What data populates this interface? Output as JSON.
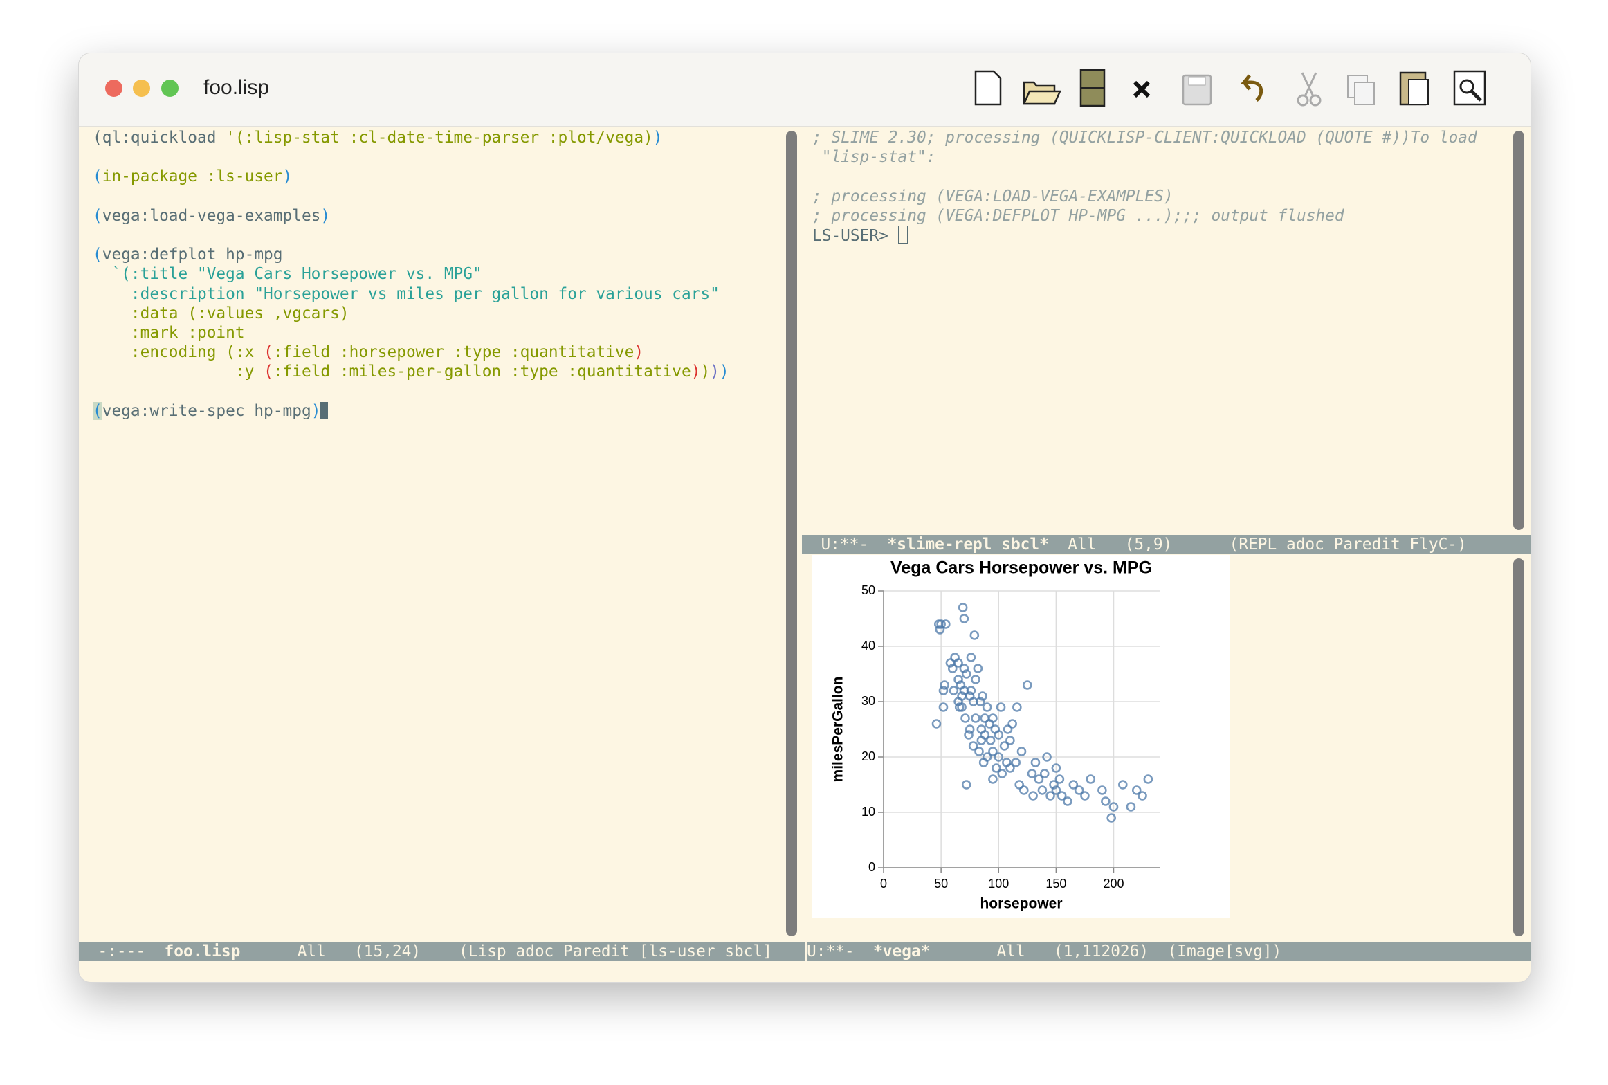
{
  "window": {
    "title": "foo.lisp"
  },
  "editor": {
    "lines": [
      [
        {
          "text": "(ql:quickload ",
          "color": "#586e75"
        },
        {
          "text": "'(:lisp-stat :cl-date-time-parser :plot/vega)",
          "color": "#859900"
        },
        {
          "text": ")",
          "color": "#268bd2"
        }
      ],
      [],
      [
        {
          "text": "(",
          "color": "#268bd2"
        },
        {
          "text": "in-package :ls-user",
          "color": "#859900"
        },
        {
          "text": ")",
          "color": "#268bd2"
        }
      ],
      [],
      [
        {
          "text": "(",
          "color": "#268bd2"
        },
        {
          "text": "vega:load-vega-examples",
          "color": "#586e75"
        },
        {
          "text": ")",
          "color": "#268bd2"
        }
      ],
      [],
      [
        {
          "text": "(",
          "color": "#268bd2"
        },
        {
          "text": "vega:defplot hp-mpg",
          "color": "#586e75"
        }
      ],
      [
        {
          "text": "  `(:title \"Vega Cars Horsepower vs. MPG\"",
          "color": "#2aa198"
        }
      ],
      [
        {
          "text": "    :description \"Horsepower vs miles per gallon for various cars\"",
          "color": "#2aa198"
        }
      ],
      [
        {
          "text": "    :data (:values ,vgcars)",
          "color": "#859900"
        }
      ],
      [
        {
          "text": "    :mark :point",
          "color": "#859900"
        }
      ],
      [
        {
          "text": "    :encoding (:x ",
          "color": "#859900"
        },
        {
          "text": "(",
          "color": "#dc322f"
        },
        {
          "text": ":field :horsepower :type :quantitative",
          "color": "#859900"
        },
        {
          "text": ")",
          "color": "#dc322f"
        }
      ],
      [
        {
          "text": "               :y ",
          "color": "#859900"
        },
        {
          "text": "(",
          "color": "#dc322f"
        },
        {
          "text": ":field :miles-per-gallon :type :quantitative",
          "color": "#859900"
        },
        {
          "text": ")",
          "color": "#dc322f"
        },
        {
          "text": ")",
          "color": "#859900"
        },
        {
          "text": ")",
          "color": "#6c71c4"
        },
        {
          "text": ")",
          "color": "#268bd2"
        }
      ],
      [],
      [
        {
          "text": "(",
          "color": "#268bd2"
        },
        {
          "text": "vega:write-spec hp-mpg",
          "color": "#586e75"
        },
        {
          "text": ")",
          "color": "#268bd2"
        }
      ]
    ]
  },
  "repl": {
    "lines": [
      "; SLIME 2.30; processing (QUICKLISP-CLIENT:QUICKLOAD (QUOTE #))To load",
      " \"lisp-stat\":",
      "",
      "; processing (VEGA:LOAD-VEGA-EXAMPLES)",
      "; processing (VEGA:DEFPLOT HP-MPG ...);;; output flushed"
    ],
    "prompt": "LS-USER> "
  },
  "modelines": {
    "repl": {
      "status": "U:**-  ",
      "buffer": "*slime-repl sbcl*",
      "rest": "  All   (5,9)      (REPL adoc Paredit FlyC-)"
    },
    "editor": {
      "status": "-:---  ",
      "buffer": "foo.lisp",
      "rest": "      All   (15,24)    (Lisp adoc Paredit [ls-user sbcl] "
    },
    "vega": {
      "status": "U:**-  ",
      "buffer": "*vega*",
      "rest": "       All   (1,112026)  (Image[svg])"
    }
  },
  "chart_data": {
    "type": "scatter",
    "title": "Vega Cars Horsepower vs. MPG",
    "x_label": "horsepower",
    "y_label": "milesPerGallon",
    "color": "#4c78a8",
    "x": [
      46,
      48,
      49,
      50,
      52,
      52,
      53,
      54,
      58,
      60,
      61,
      62,
      65,
      65,
      65,
      66,
      67,
      68,
      68,
      69,
      70,
      70,
      70,
      71,
      72,
      74,
      75,
      75,
      76,
      78,
      78,
      79,
      80,
      80,
      82,
      83,
      84,
      85,
      86,
      87,
      88,
      88,
      90,
      90,
      92,
      93,
      95,
      95,
      97,
      98,
      100,
      100,
      102,
      103,
      105,
      107,
      108,
      110,
      110,
      112,
      115,
      116,
      118,
      120,
      122,
      125,
      129,
      130,
      132,
      135,
      138,
      140,
      142,
      145,
      148,
      150,
      150,
      153,
      155,
      160,
      165,
      170,
      175,
      180,
      190,
      193,
      198,
      200,
      208,
      215,
      220,
      225,
      230,
      72,
      76,
      85,
      95
    ],
    "values": [
      26,
      44,
      43,
      44,
      32,
      29,
      33,
      44,
      37,
      36,
      32,
      38,
      34,
      37,
      30,
      29,
      33,
      29,
      31,
      47,
      36,
      45,
      32,
      27,
      35,
      24,
      31,
      25,
      38,
      22,
      30,
      42,
      34,
      27,
      36,
      21,
      30,
      25,
      31,
      19,
      27,
      24,
      29,
      20,
      26,
      23,
      21,
      27,
      25,
      18,
      20,
      24,
      29,
      17,
      22,
      19,
      25,
      18,
      23,
      26,
      19,
      29,
      15,
      21,
      14,
      33,
      17,
      13,
      19,
      16,
      14,
      17,
      20,
      13,
      15,
      14,
      18,
      16,
      13,
      12,
      15,
      14,
      13,
      16,
      14,
      12,
      9,
      11,
      15,
      11,
      14,
      13,
      16,
      15,
      32,
      23,
      16
    ],
    "xlim": [
      0,
      240
    ],
    "ylim": [
      0,
      50
    ],
    "xticks": [
      0,
      50,
      100,
      150,
      200
    ],
    "yticks": [
      0,
      10,
      20,
      30,
      40,
      50
    ],
    "grid": true
  }
}
